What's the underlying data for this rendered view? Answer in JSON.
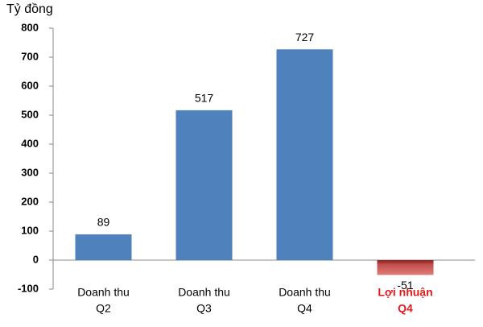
{
  "chart_data": {
    "type": "bar",
    "y_axis_label": "Tỷ đồng",
    "categories": [
      [
        "Doanh thu",
        "Q2"
      ],
      [
        "Doanh thu",
        "Q3"
      ],
      [
        "Doanh thu",
        "Q4"
      ],
      [
        "Lợi nhuận",
        "Q4"
      ]
    ],
    "values": [
      89,
      517,
      727,
      -51
    ],
    "colors": [
      "#4f81bd",
      "#4f81bd",
      "#4f81bd",
      "#c0504d"
    ],
    "category_label_colors": [
      "#000000",
      "#000000",
      "#000000",
      "#e31a1c"
    ],
    "ylim": [
      -100,
      800
    ],
    "yticks": [
      -100,
      0,
      100,
      200,
      300,
      400,
      500,
      600,
      700,
      800
    ],
    "grid": false
  }
}
